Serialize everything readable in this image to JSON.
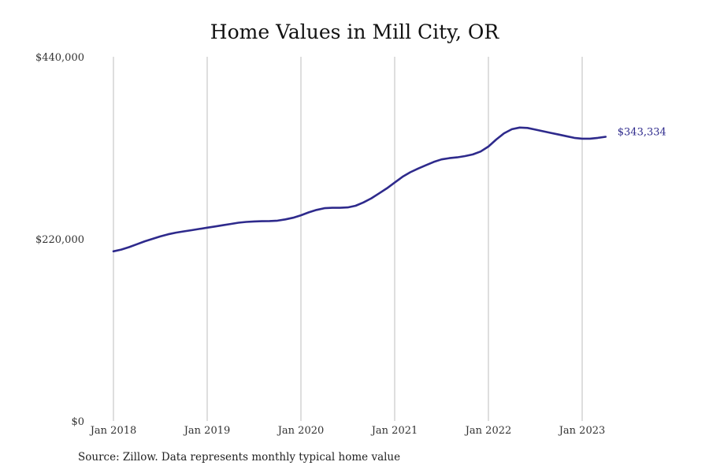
{
  "chart_data": {
    "type": "line",
    "title": "Home Values in Mill City, OR",
    "xlabel": "",
    "ylabel": "",
    "ylim": [
      0,
      440000
    ],
    "y_ticks": [
      0,
      220000,
      440000
    ],
    "y_tick_labels": [
      "$0",
      "$220,000",
      "$440,000"
    ],
    "x_range": [
      "2018-01",
      "2023-12"
    ],
    "x_ticks": [
      "2018-01",
      "2019-01",
      "2020-01",
      "2021-01",
      "2022-01",
      "2023-01"
    ],
    "x_tick_labels": [
      "Jan 2018",
      "Jan 2019",
      "Jan 2020",
      "Jan 2021",
      "Jan 2022",
      "Jan 2023"
    ],
    "grid": "vertical",
    "line_color": "#2e2a8c",
    "end_label": "$343,334",
    "series": [
      {
        "x": [
          "2018-01",
          "2018-02",
          "2018-03",
          "2018-04",
          "2018-05",
          "2018-06",
          "2018-07",
          "2018-08",
          "2018-09",
          "2018-10",
          "2018-11",
          "2018-12",
          "2019-01",
          "2019-02",
          "2019-03",
          "2019-04",
          "2019-05",
          "2019-06",
          "2019-07",
          "2019-08",
          "2019-09",
          "2019-10",
          "2019-11",
          "2019-12",
          "2020-01",
          "2020-02",
          "2020-03",
          "2020-04",
          "2020-05",
          "2020-06",
          "2020-07",
          "2020-08",
          "2020-09",
          "2020-10",
          "2020-11",
          "2020-12",
          "2021-01",
          "2021-02",
          "2021-03",
          "2021-04",
          "2021-05",
          "2021-06",
          "2021-07",
          "2021-08",
          "2021-09",
          "2021-10",
          "2021-11",
          "2021-12",
          "2022-01",
          "2022-02",
          "2022-03",
          "2022-04",
          "2022-05",
          "2022-06",
          "2022-07",
          "2022-08",
          "2022-09",
          "2022-10",
          "2022-11",
          "2022-12",
          "2023-01",
          "2023-02",
          "2023-03",
          "2023-04"
        ],
        "values": [
          205000,
          207000,
          210000,
          213500,
          217000,
          220000,
          223000,
          225500,
          227500,
          229000,
          230500,
          232000,
          233500,
          235000,
          236500,
          238000,
          239500,
          240500,
          241000,
          241300,
          241500,
          242000,
          243500,
          245500,
          248500,
          252000,
          255000,
          257000,
          257500,
          257500,
          258000,
          260000,
          264000,
          269000,
          275000,
          281000,
          288000,
          295000,
          300500,
          305000,
          309000,
          313000,
          316000,
          317500,
          318500,
          320000,
          322000,
          325500,
          331500,
          340000,
          347500,
          352500,
          354500,
          354000,
          352000,
          350000,
          348000,
          346000,
          344000,
          342000,
          341000,
          341000,
          342000,
          343334
        ]
      }
    ]
  },
  "source": "Source: Zillow. Data represents monthly typical home value"
}
